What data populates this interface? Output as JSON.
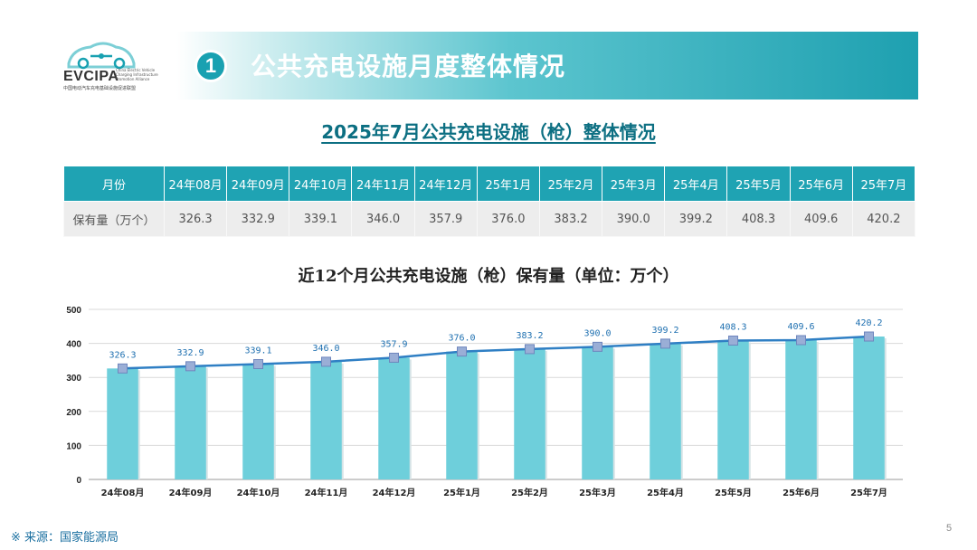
{
  "logo": {
    "name": "EVCIPA",
    "subtitle": "中国电动汽车充电基础设施促进联盟",
    "english": "China Electric Vehicle Charging Infrastructure Promotion Alliance"
  },
  "section": {
    "number": "1",
    "title": "公共充电设施月度整体情况"
  },
  "subtitle": "2025年7月公共充电设施（枪）整体情况",
  "table": {
    "header_label": "月份",
    "row_label": "保有量（万个）",
    "months": [
      "24年08月",
      "24年09月",
      "24年10月",
      "24年11月",
      "24年12月",
      "25年1月",
      "25年2月",
      "25年3月",
      "25年4月",
      "25年5月",
      "25年6月",
      "25年7月"
    ],
    "values": [
      "326.3",
      "332.9",
      "339.1",
      "346.0",
      "357.9",
      "376.0",
      "383.2",
      "390.0",
      "399.2",
      "408.3",
      "409.6",
      "420.2"
    ]
  },
  "chart_data": {
    "type": "bar",
    "title": "近12个月公共充电设施（枪）保有量（单位：万个）",
    "categories": [
      "24年08月",
      "24年09月",
      "24年10月",
      "24年11月",
      "24年12月",
      "25年1月",
      "25年2月",
      "25年3月",
      "25年4月",
      "25年5月",
      "25年6月",
      "25年7月"
    ],
    "values": [
      326.3,
      332.9,
      339.1,
      346.0,
      357.9,
      376.0,
      383.2,
      390.0,
      399.2,
      408.3,
      409.6,
      420.2
    ],
    "overlay_line": true,
    "ylim": [
      0,
      500
    ],
    "yticks": [
      0,
      100,
      200,
      300,
      400,
      500
    ],
    "grid": true,
    "colors": {
      "bar": "#6ecfdb",
      "line": "#2f7fc4",
      "marker": "#9aaed6",
      "label": "#1d6fb0"
    }
  },
  "source": "※ 来源：国家能源局",
  "page_number": "5"
}
